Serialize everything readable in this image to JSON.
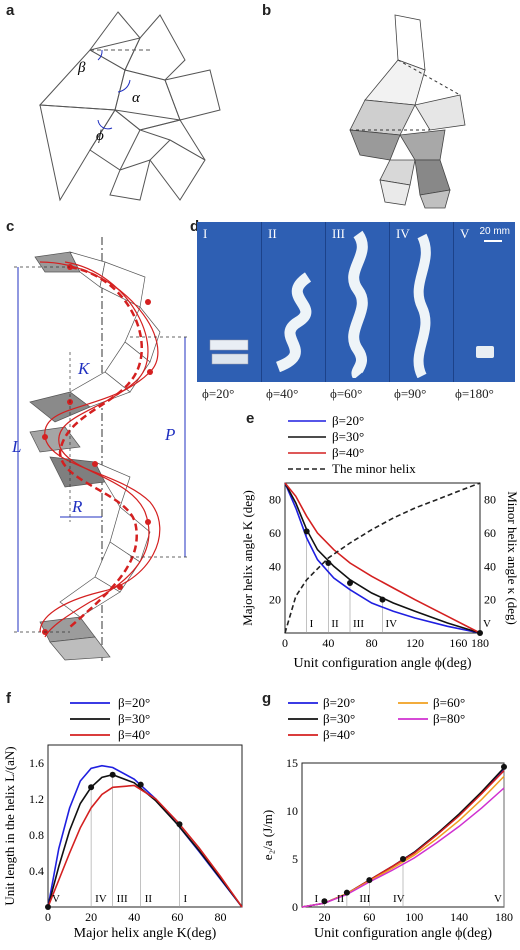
{
  "panel_labels": {
    "a": "a",
    "b": "b",
    "c": "c",
    "d": "d",
    "e": "e",
    "f": "f",
    "g": "g"
  },
  "angles": {
    "beta": "β",
    "alpha": "α",
    "phi": "ϕ"
  },
  "panel_c": {
    "L": "L",
    "K": "K",
    "P": "P",
    "R": "R"
  },
  "panel_d": {
    "scale": "20 mm",
    "panels": [
      {
        "roman": "I",
        "caption": "ϕ=20°"
      },
      {
        "roman": "II",
        "caption": "ϕ=40°"
      },
      {
        "roman": "III",
        "caption": "ϕ=60°"
      },
      {
        "roman": "IV",
        "caption": "ϕ=90°"
      },
      {
        "roman": "V",
        "caption": "ϕ=180°"
      }
    ]
  },
  "colors": {
    "blue": "#1f1fe0",
    "black": "#111111",
    "red": "#d42020",
    "orange": "#f0a020",
    "magenta": "#d030d0",
    "photo_bg": "#2e5fb3"
  },
  "panel_e": {
    "legend": [
      "β=20°",
      "β=30°",
      "β=40°",
      "The minor helix"
    ],
    "ylabel_left": "Major helix angle K (deg)",
    "ylabel_right": "Minor helix angle κ (deg)",
    "xlabel": "Unit configuration angle ϕ(deg)",
    "xticks": [
      "0",
      "40",
      "80",
      "120",
      "160",
      "180"
    ],
    "yticks_left": [
      "20",
      "40",
      "60",
      "80"
    ],
    "yticks_right": [
      "20",
      "40",
      "60",
      "80"
    ],
    "romans": [
      "I",
      "II",
      "III",
      "IV",
      "V"
    ]
  },
  "panel_f": {
    "legend": [
      "β=20°",
      "β=30°",
      "β=40°"
    ],
    "ylabel": "Unit length in the helix L/(aN)",
    "xlabel": "Major helix angle K(deg)",
    "xticks": [
      "0",
      "20",
      "40",
      "60",
      "80"
    ],
    "yticks": [
      "0.4",
      "0.8",
      "1.2",
      "1.6"
    ],
    "romans": [
      "V",
      "IV",
      "III",
      "II",
      "I"
    ]
  },
  "panel_g": {
    "legend": [
      "β=20°",
      "β=30°",
      "β=40°",
      "β=60°",
      "β=80°"
    ],
    "ylabel": "e₂/a (J/m)",
    "xlabel": "Unit configuration angle ϕ(deg)",
    "xticks": [
      "20",
      "60",
      "100",
      "140",
      "180"
    ],
    "yticks": [
      "0",
      "5",
      "10",
      "15"
    ],
    "romans": [
      "I",
      "II",
      "III",
      "IV",
      "V"
    ]
  },
  "chart_data": [
    {
      "type": "line",
      "title": "",
      "xlabel": "Unit configuration angle ϕ(deg)",
      "ylabel": "Major helix angle K (deg)",
      "xlim": [
        0,
        180
      ],
      "ylim": [
        0,
        90
      ],
      "series": [
        {
          "name": "β=20°",
          "x": [
            0,
            10,
            20,
            30,
            45,
            60,
            80,
            100,
            120,
            150,
            180
          ],
          "y": [
            90,
            75,
            57,
            44,
            33,
            26,
            18,
            13,
            9,
            4,
            0
          ]
        },
        {
          "name": "β=30°",
          "x": [
            0,
            10,
            20,
            30,
            45,
            60,
            80,
            100,
            120,
            150,
            180
          ],
          "y": [
            90,
            78,
            62,
            50,
            40,
            32,
            24,
            18,
            13,
            6,
            0
          ]
        },
        {
          "name": "β=40°",
          "x": [
            0,
            10,
            20,
            30,
            45,
            60,
            80,
            100,
            120,
            150,
            180
          ],
          "y": [
            90,
            82,
            70,
            60,
            50,
            42,
            34,
            27,
            20,
            10,
            0
          ]
        },
        {
          "name": "The minor helix",
          "x": [
            0,
            10,
            20,
            40,
            60,
            80,
            100,
            120,
            140,
            160,
            180
          ],
          "y": [
            0,
            22,
            32,
            45,
            54,
            62,
            69,
            75,
            80,
            85,
            90
          ]
        }
      ],
      "markers": {
        "x": [
          20,
          40,
          60,
          90,
          180
        ],
        "y": [
          61,
          42,
          30,
          20,
          0
        ],
        "labels": [
          "I",
          "II",
          "III",
          "IV",
          "V"
        ]
      }
    },
    {
      "type": "line",
      "title": "",
      "xlabel": "Major helix angle K(deg)",
      "ylabel": "Unit length in the helix L/(aN)",
      "xlim": [
        0,
        90
      ],
      "ylim": [
        0,
        1.8
      ],
      "series": [
        {
          "name": "β=20°",
          "x": [
            0,
            5,
            10,
            15,
            20,
            25,
            30,
            40,
            50,
            60,
            70,
            80,
            90
          ],
          "y": [
            0,
            0.65,
            1.1,
            1.4,
            1.54,
            1.57,
            1.55,
            1.42,
            1.2,
            0.92,
            0.62,
            0.31,
            0
          ]
        },
        {
          "name": "β=30°",
          "x": [
            0,
            5,
            10,
            15,
            20,
            25,
            30,
            40,
            50,
            60,
            70,
            80,
            90
          ],
          "y": [
            0,
            0.45,
            0.85,
            1.15,
            1.33,
            1.44,
            1.47,
            1.38,
            1.18,
            0.92,
            0.63,
            0.32,
            0
          ]
        },
        {
          "name": "β=40°",
          "x": [
            0,
            5,
            10,
            15,
            20,
            25,
            30,
            40,
            50,
            60,
            70,
            80,
            90
          ],
          "y": [
            0,
            0.3,
            0.6,
            0.88,
            1.1,
            1.25,
            1.33,
            1.35,
            1.2,
            0.95,
            0.66,
            0.34,
            0
          ]
        }
      ],
      "markers": {
        "x": [
          0,
          20,
          30,
          43,
          61
        ],
        "y": [
          0,
          1.33,
          1.47,
          1.36,
          0.92
        ],
        "labels": [
          "V",
          "IV",
          "III",
          "II",
          "I"
        ]
      }
    },
    {
      "type": "line",
      "title": "",
      "xlabel": "Unit configuration angle ϕ(deg)",
      "ylabel": "e₂/a (J/m)",
      "xlim": [
        0,
        180
      ],
      "ylim": [
        0,
        15
      ],
      "series": [
        {
          "name": "β=20°",
          "x": [
            0,
            20,
            40,
            60,
            80,
            100,
            120,
            140,
            160,
            180
          ],
          "y": [
            0,
            0.4,
            1.4,
            2.8,
            4.2,
            5.7,
            7.6,
            9.6,
            11.9,
            14.4
          ]
        },
        {
          "name": "β=30°",
          "x": [
            0,
            20,
            40,
            60,
            80,
            100,
            120,
            140,
            160,
            180
          ],
          "y": [
            0,
            0.4,
            1.4,
            2.8,
            4.2,
            5.7,
            7.6,
            9.7,
            12.0,
            14.5
          ]
        },
        {
          "name": "β=40°",
          "x": [
            0,
            20,
            40,
            60,
            80,
            100,
            120,
            140,
            160,
            180
          ],
          "y": [
            0,
            0.4,
            1.4,
            2.8,
            4.2,
            5.6,
            7.5,
            9.5,
            11.8,
            14.2
          ]
        },
        {
          "name": "β=60°",
          "x": [
            0,
            20,
            40,
            60,
            80,
            100,
            120,
            140,
            160,
            180
          ],
          "y": [
            0,
            0.4,
            1.4,
            2.7,
            4.0,
            5.4,
            7.1,
            9.0,
            11.2,
            13.6
          ]
        },
        {
          "name": "β=80°",
          "x": [
            0,
            20,
            40,
            60,
            80,
            100,
            120,
            140,
            160,
            180
          ],
          "y": [
            0,
            0.4,
            1.3,
            2.6,
            3.8,
            5.1,
            6.7,
            8.4,
            10.3,
            12.4
          ]
        }
      ],
      "markers": {
        "x": [
          20,
          40,
          60,
          90,
          180
        ],
        "y": [
          0.6,
          1.5,
          2.8,
          5.0,
          14.6
        ],
        "labels": [
          "I",
          "II",
          "III",
          "IV",
          "V"
        ]
      }
    }
  ]
}
